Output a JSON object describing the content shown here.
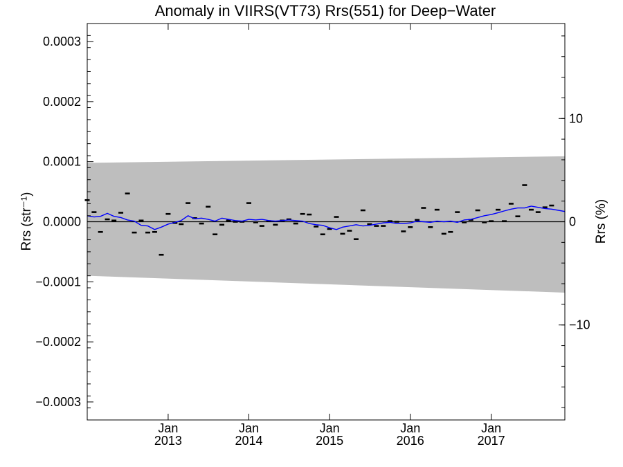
{
  "chart_data": {
    "type": "scatter",
    "title": "Anomaly in VIIRS(VT73) Rrs(551) for Deep−Water",
    "ylabel": "Rrs (str⁻¹)",
    "ylabel_right": "Rrs (%)",
    "xlim": [
      "2012-01-01",
      "2017-11-30"
    ],
    "ylim": [
      -0.00033,
      0.00033
    ],
    "ylim_right": [
      -19.2,
      19.2
    ],
    "x_ticks": [
      {
        "date": "2013-01-01",
        "month": "Jan",
        "year": "2013"
      },
      {
        "date": "2014-01-01",
        "month": "Jan",
        "year": "2014"
      },
      {
        "date": "2015-01-01",
        "month": "Jan",
        "year": "2015"
      },
      {
        "date": "2016-01-01",
        "month": "Jan",
        "year": "2016"
      },
      {
        "date": "2017-01-01",
        "month": "Jan",
        "year": "2017"
      }
    ],
    "y_ticks": [
      {
        "value": 0.0003,
        "label": "0.0003"
      },
      {
        "value": 0.0002,
        "label": "0.0002"
      },
      {
        "value": 0.0001,
        "label": "0.0001"
      },
      {
        "value": 0.0,
        "label": "0.0000"
      },
      {
        "value": -0.0001,
        "label": "−0.0001"
      },
      {
        "value": -0.0002,
        "label": "−0.0002"
      },
      {
        "value": -0.0003,
        "label": "−0.0003"
      }
    ],
    "y_ticks_right": [
      {
        "value": 10,
        "label": "10"
      },
      {
        "value": 0,
        "label": "0"
      },
      {
        "value": -10,
        "label": "−10"
      }
    ],
    "colors": {
      "band": "#bebebe",
      "line": "#0000ff",
      "markers": "#000000",
      "zero_line": "#000000"
    },
    "band": {
      "upper": [
        [
          "2012-01-01",
          9.8e-05
        ],
        [
          "2017-11-30",
          0.000109
        ]
      ],
      "lower": [
        [
          "2012-01-01",
          -9e-05
        ],
        [
          "2017-11-30",
          -0.000118
        ]
      ]
    },
    "series": [
      {
        "type": "scatter",
        "marker": "dash",
        "points": [
          [
            "2012-01-01",
            3.6e-05
          ],
          [
            "2012-02-01",
            1.6e-05
          ],
          [
            "2012-03-01",
            -1.7e-05
          ],
          [
            "2012-04-01",
            4e-06
          ],
          [
            "2012-05-01",
            2e-06
          ],
          [
            "2012-06-01",
            1.5e-05
          ],
          [
            "2012-07-01",
            4.7e-05
          ],
          [
            "2012-08-01",
            -1.8e-05
          ],
          [
            "2012-09-01",
            2e-06
          ],
          [
            "2012-10-01",
            -1.8e-05
          ],
          [
            "2012-11-01",
            -1.7e-05
          ],
          [
            "2012-12-01",
            -5.5e-05
          ],
          [
            "2013-01-01",
            1.3e-05
          ],
          [
            "2013-02-01",
            -2e-06
          ],
          [
            "2013-03-01",
            -4e-06
          ],
          [
            "2013-04-01",
            3.1e-05
          ],
          [
            "2013-05-01",
            6e-06
          ],
          [
            "2013-06-01",
            -3e-06
          ],
          [
            "2013-07-01",
            2.5e-05
          ],
          [
            "2013-08-01",
            -2.1e-05
          ],
          [
            "2013-09-01",
            -5e-06
          ],
          [
            "2013-10-01",
            2e-06
          ],
          [
            "2013-11-01",
            0.0
          ],
          [
            "2013-12-01",
            0.0
          ],
          [
            "2014-01-01",
            3.1e-05
          ],
          [
            "2014-02-01",
            -1e-06
          ],
          [
            "2014-03-01",
            -7e-06
          ],
          [
            "2014-04-01",
            1e-06
          ],
          [
            "2014-05-01",
            -5e-06
          ],
          [
            "2014-06-01",
            2e-06
          ],
          [
            "2014-07-01",
            4e-06
          ],
          [
            "2014-08-01",
            -3e-06
          ],
          [
            "2014-09-01",
            1.3e-05
          ],
          [
            "2014-10-01",
            1.2e-05
          ],
          [
            "2014-11-01",
            -8e-06
          ],
          [
            "2014-12-01",
            -2.1e-05
          ],
          [
            "2015-01-01",
            -1.2e-05
          ],
          [
            "2015-02-01",
            8e-06
          ],
          [
            "2015-03-01",
            -2e-05
          ],
          [
            "2015-04-01",
            -1.5e-05
          ],
          [
            "2015-05-01",
            -2.9e-05
          ],
          [
            "2015-06-01",
            1.9e-05
          ],
          [
            "2015-07-01",
            -4e-06
          ],
          [
            "2015-08-01",
            -7e-06
          ],
          [
            "2015-09-01",
            -7e-06
          ],
          [
            "2015-10-01",
            1e-06
          ],
          [
            "2015-11-01",
            0.0
          ],
          [
            "2015-12-01",
            -1.6e-05
          ],
          [
            "2016-01-01",
            -9e-06
          ],
          [
            "2016-02-01",
            3e-06
          ],
          [
            "2016-03-01",
            2.3e-05
          ],
          [
            "2016-04-01",
            -9e-06
          ],
          [
            "2016-05-01",
            2e-05
          ],
          [
            "2016-06-01",
            -2e-05
          ],
          [
            "2016-07-01",
            -1.7e-05
          ],
          [
            "2016-08-01",
            1.6e-05
          ],
          [
            "2016-09-01",
            -1e-06
          ],
          [
            "2016-10-01",
            3e-06
          ],
          [
            "2016-11-01",
            1.9e-05
          ],
          [
            "2016-12-01",
            -1e-06
          ],
          [
            "2017-01-01",
            1e-06
          ],
          [
            "2017-02-01",
            2e-05
          ],
          [
            "2017-03-01",
            1e-06
          ],
          [
            "2017-04-01",
            3e-05
          ],
          [
            "2017-05-01",
            9e-06
          ],
          [
            "2017-06-01",
            6.1e-05
          ],
          [
            "2017-07-01",
            2e-05
          ],
          [
            "2017-08-01",
            1.6e-05
          ],
          [
            "2017-09-01",
            2.4e-05
          ],
          [
            "2017-10-01",
            2.7e-05
          ]
        ]
      },
      {
        "type": "line",
        "points": [
          [
            "2012-01-01",
            1e-05
          ],
          [
            "2012-02-01",
            8e-06
          ],
          [
            "2012-03-01",
            9e-06
          ],
          [
            "2012-04-01",
            1.4e-05
          ],
          [
            "2012-05-01",
            9e-06
          ],
          [
            "2012-06-01",
            7e-06
          ],
          [
            "2012-07-01",
            3e-06
          ],
          [
            "2012-08-01",
            1e-06
          ],
          [
            "2012-09-01",
            -6e-06
          ],
          [
            "2012-10-01",
            -7e-06
          ],
          [
            "2012-11-01",
            -1.3e-05
          ],
          [
            "2012-12-01",
            -9e-06
          ],
          [
            "2013-01-01",
            -4e-06
          ],
          [
            "2013-02-01",
            -1e-06
          ],
          [
            "2013-03-01",
            2e-06
          ],
          [
            "2013-04-01",
            1e-05
          ],
          [
            "2013-05-01",
            5e-06
          ],
          [
            "2013-06-01",
            6e-06
          ],
          [
            "2013-07-01",
            4e-06
          ],
          [
            "2013-08-01",
            1e-06
          ],
          [
            "2013-09-01",
            6e-06
          ],
          [
            "2013-10-01",
            4e-06
          ],
          [
            "2013-11-01",
            2e-06
          ],
          [
            "2013-12-01",
            1e-06
          ],
          [
            "2014-01-01",
            4e-06
          ],
          [
            "2014-02-01",
            3e-06
          ],
          [
            "2014-03-01",
            4e-06
          ],
          [
            "2014-04-01",
            2e-06
          ],
          [
            "2014-05-01",
            1e-06
          ],
          [
            "2014-06-01",
            2e-06
          ],
          [
            "2014-07-01",
            3e-06
          ],
          [
            "2014-08-01",
            2e-06
          ],
          [
            "2014-09-01",
            1e-06
          ],
          [
            "2014-10-01",
            -3e-06
          ],
          [
            "2014-11-01",
            -5e-06
          ],
          [
            "2014-12-01",
            -6e-06
          ],
          [
            "2015-01-01",
            -1e-05
          ],
          [
            "2015-02-01",
            -1.3e-05
          ],
          [
            "2015-03-01",
            -9e-06
          ],
          [
            "2015-04-01",
            -7e-06
          ],
          [
            "2015-05-01",
            -5e-06
          ],
          [
            "2015-06-01",
            -7e-06
          ],
          [
            "2015-07-01",
            -6e-06
          ],
          [
            "2015-08-01",
            -4e-06
          ],
          [
            "2015-09-01",
            -2e-06
          ],
          [
            "2015-10-01",
            -1e-06
          ],
          [
            "2015-11-01",
            -3e-06
          ],
          [
            "2015-12-01",
            -3e-06
          ],
          [
            "2016-01-01",
            -2e-06
          ],
          [
            "2016-02-01",
            1e-06
          ],
          [
            "2016-03-01",
            0.0
          ],
          [
            "2016-04-01",
            -1e-06
          ],
          [
            "2016-05-01",
            1e-06
          ],
          [
            "2016-06-01",
            0.0
          ],
          [
            "2016-07-01",
            1e-06
          ],
          [
            "2016-08-01",
            -1e-06
          ],
          [
            "2016-09-01",
            3e-06
          ],
          [
            "2016-10-01",
            4e-06
          ],
          [
            "2016-11-01",
            7e-06
          ],
          [
            "2016-12-01",
            1e-05
          ],
          [
            "2017-01-01",
            1.2e-05
          ],
          [
            "2017-02-01",
            1.5e-05
          ],
          [
            "2017-03-01",
            1.8e-05
          ],
          [
            "2017-04-01",
            2.1e-05
          ],
          [
            "2017-05-01",
            2.3e-05
          ],
          [
            "2017-06-01",
            2.3e-05
          ],
          [
            "2017-07-01",
            2.6e-05
          ],
          [
            "2017-08-01",
            2.4e-05
          ],
          [
            "2017-09-01",
            2.2e-05
          ],
          [
            "2017-10-01",
            2.1e-05
          ],
          [
            "2017-11-01",
            1.9e-05
          ],
          [
            "2017-11-30",
            1.7e-05
          ]
        ]
      }
    ]
  }
}
